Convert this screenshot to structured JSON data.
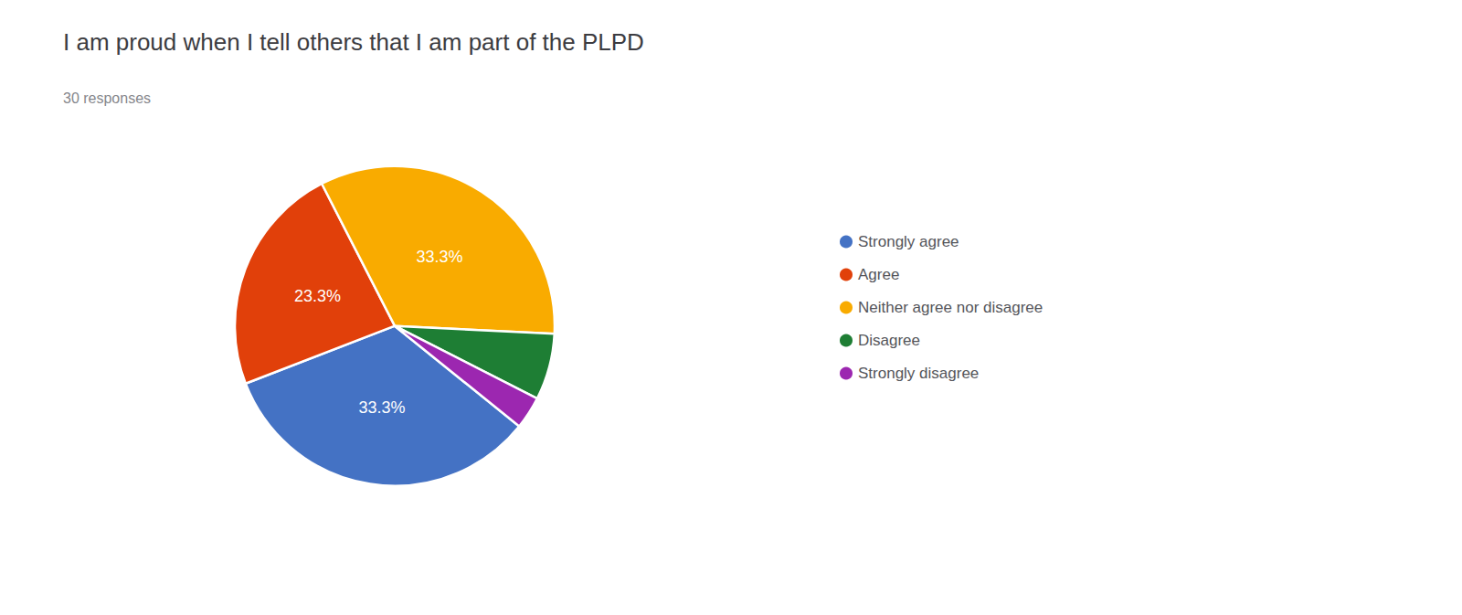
{
  "chart_data": {
    "type": "pie",
    "title": "I am proud when I tell others that I am part of the PLPD",
    "subtitle": "30 responses",
    "categories": [
      "Strongly agree",
      "Agree",
      "Neither agree nor disagree",
      "Disagree",
      "Strongly disagree"
    ],
    "values": [
      33.3,
      23.3,
      33.3,
      6.7,
      3.3
    ],
    "value_labels": [
      "33.3%",
      "23.3%",
      "33.3%",
      null,
      null
    ],
    "colors": [
      "#4472C4",
      "#E1400A",
      "#F9AB00",
      "#1E7E34",
      "#9C27B0"
    ],
    "data_labels": true,
    "legend": "right"
  }
}
